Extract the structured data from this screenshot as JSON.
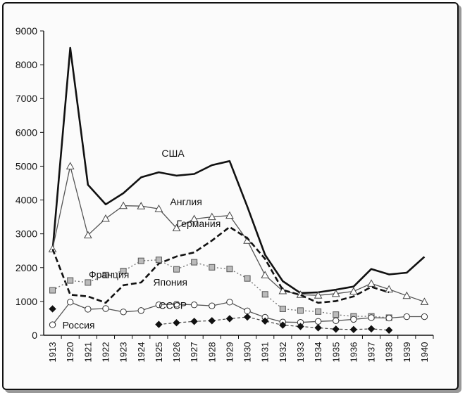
{
  "chart_data": {
    "type": "line",
    "x": [
      "1913",
      "1920",
      "1921",
      "1922",
      "1923",
      "1924",
      "1925",
      "1926",
      "1927",
      "1928",
      "1929",
      "1930",
      "1931",
      "1932",
      "1933",
      "1934",
      "1935",
      "1936",
      "1937",
      "1938",
      "1939",
      "1940"
    ],
    "ylim": [
      0,
      9000
    ],
    "yticks": [
      0,
      1000,
      2000,
      3000,
      4000,
      5000,
      6000,
      7000,
      8000,
      9000
    ],
    "grid": false,
    "legend": "inline labels",
    "series": [
      {
        "name": "США",
        "style": "solid-thick",
        "marker": "none",
        "values": [
          2500,
          8500,
          4450,
          3870,
          4200,
          4670,
          4820,
          4720,
          4770,
          5030,
          5150,
          3800,
          2380,
          1600,
          1250,
          1270,
          1350,
          1440,
          1960,
          1800,
          1850,
          2320
        ]
      },
      {
        "name": "Англия",
        "style": "solid-thin",
        "marker": "triangle",
        "values": [
          2550,
          5000,
          2960,
          3450,
          3830,
          3820,
          3740,
          3170,
          3440,
          3500,
          3540,
          2800,
          1780,
          1310,
          1200,
          1180,
          1230,
          1300,
          1530,
          1360,
          1170,
          990
        ]
      },
      {
        "name": "Германия",
        "style": "dashed-thick",
        "marker": "none",
        "values": [
          2550,
          1200,
          1150,
          960,
          1480,
          1560,
          2120,
          2330,
          2450,
          2800,
          3200,
          2870,
          2260,
          1340,
          1190,
          960,
          1010,
          1150,
          1430,
          1270,
          null,
          null
        ]
      },
      {
        "name": "Франция",
        "style": "dotted",
        "marker": "square",
        "values": [
          1330,
          1620,
          1560,
          1780,
          1900,
          2200,
          2230,
          1950,
          2160,
          2010,
          1960,
          1680,
          1210,
          780,
          730,
          700,
          610,
          560,
          560,
          520,
          null,
          null
        ]
      },
      {
        "name": "Япония",
        "style": "solid-thin",
        "marker": "circle",
        "values": [
          310,
          980,
          770,
          790,
          690,
          730,
          900,
          920,
          900,
          870,
          980,
          720,
          530,
          390,
          380,
          410,
          430,
          470,
          520,
          510,
          550,
          550
        ]
      },
      {
        "name": "Россия",
        "style": "solid-thin",
        "marker": "diamond",
        "values": [
          780,
          null,
          null,
          null,
          null,
          null,
          null,
          null,
          null,
          null,
          null,
          null,
          null,
          null,
          null,
          null,
          null,
          null,
          null,
          null,
          null,
          null
        ]
      },
      {
        "name": "СССР",
        "style": "dashed-thin",
        "marker": "diamond",
        "values": [
          null,
          null,
          null,
          null,
          null,
          null,
          320,
          370,
          410,
          430,
          490,
          540,
          420,
          300,
          260,
          220,
          180,
          170,
          190,
          150,
          null,
          null
        ]
      }
    ]
  }
}
